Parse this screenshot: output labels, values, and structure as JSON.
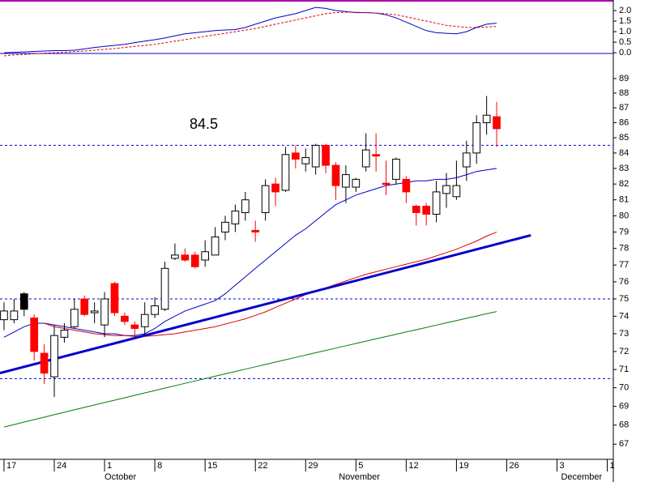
{
  "chart_data": {
    "type": "candlestick",
    "x": [
      0,
      1,
      2,
      3,
      4,
      5,
      6,
      7,
      8,
      9,
      10,
      11,
      12,
      13,
      14,
      15,
      16,
      17,
      18,
      19,
      20,
      21,
      22,
      23,
      24,
      25,
      26,
      27,
      28,
      29,
      30,
      31,
      32,
      33,
      34,
      35,
      36,
      37,
      38,
      39,
      40,
      41,
      42,
      43,
      44,
      45,
      46,
      47,
      48,
      49
    ],
    "open": [
      73.8,
      73.8,
      75.3,
      73.9,
      71.9,
      70.6,
      72.8,
      73.4,
      75.0,
      74.2,
      73.5,
      75.9,
      74.0,
      73.5,
      73.4,
      74.1,
      74.4,
      77.4,
      77.6,
      77.6,
      77.3,
      77.6,
      79.0,
      79.5,
      80.2,
      79.1,
      80.2,
      82.0,
      81.6,
      84.0,
      83.3,
      83.1,
      84.5,
      83.2,
      81.8,
      81.8,
      83.1,
      83.9,
      82.05,
      82.3,
      82.3,
      80.6,
      80.6,
      80.1,
      81.4,
      81.2,
      83.1,
      84.0,
      86.0,
      86.4
    ],
    "high": [
      74.8,
      75.0,
      75.4,
      74.1,
      72.4,
      73.5,
      73.6,
      75.0,
      75.2,
      74.8,
      75.4,
      76.0,
      74.2,
      73.7,
      74.8,
      75.1,
      77.2,
      78.3,
      78.0,
      77.8,
      78.5,
      79.3,
      80.0,
      80.7,
      81.5,
      79.7,
      82.3,
      82.4,
      84.4,
      84.5,
      84.3,
      84.6,
      84.6,
      83.4,
      83.2,
      82.4,
      85.3,
      85.3,
      83.5,
      83.7,
      82.5,
      80.7,
      80.8,
      82.2,
      82.7,
      83.5,
      84.8,
      86.5,
      87.8,
      87.4
    ],
    "low": [
      73.2,
      73.6,
      74.0,
      71.5,
      70.2,
      69.5,
      72.5,
      73.3,
      74.0,
      73.6,
      72.8,
      74.0,
      73.5,
      72.8,
      72.9,
      73.9,
      74.3,
      77.3,
      77.2,
      76.8,
      76.9,
      77.6,
      78.5,
      79.0,
      79.7,
      78.4,
      79.7,
      80.6,
      81.5,
      83.0,
      82.8,
      82.6,
      82.7,
      81.0,
      80.8,
      81.5,
      82.8,
      82.8,
      81.3,
      82.0,
      80.8,
      79.4,
      79.4,
      79.6,
      80.5,
      81.0,
      82.2,
      83.3,
      85.2,
      84.4
    ],
    "close": [
      74.3,
      74.3,
      74.4,
      72.0,
      70.8,
      72.9,
      73.2,
      74.4,
      74.1,
      74.3,
      75.0,
      74.2,
      73.7,
      73.3,
      74.1,
      74.6,
      76.8,
      77.6,
      77.3,
      76.9,
      77.8,
      78.7,
      79.6,
      80.3,
      81.0,
      79.0,
      81.9,
      81.5,
      83.9,
      83.6,
      83.7,
      84.5,
      83.2,
      81.9,
      82.6,
      82.3,
      84.2,
      83.8,
      82.0,
      83.6,
      81.5,
      80.2,
      80.1,
      81.5,
      81.9,
      81.9,
      84.0,
      86.0,
      86.5,
      85.6
    ],
    "up_color": "#ffffff",
    "down_color": "#ff0000",
    "highlight": {
      "index": 2,
      "color": "#000000"
    },
    "log_scale": true,
    "ylim": [
      66.3,
      90.75
    ],
    "yticks": [
      67,
      68,
      69,
      70,
      71,
      72,
      73,
      74,
      75,
      76,
      77,
      78,
      79,
      80,
      81,
      82,
      83,
      84,
      85,
      86,
      87,
      88,
      89
    ],
    "xlim": [
      -0.4,
      60.6
    ],
    "xticks": [
      {
        "value": 0,
        "label": "17"
      },
      {
        "value": 5,
        "label": "24"
      },
      {
        "value": 10,
        "label": "1"
      },
      {
        "value": 15,
        "label": "8"
      },
      {
        "value": 20,
        "label": "15"
      },
      {
        "value": 25,
        "label": "22"
      },
      {
        "value": 30,
        "label": "29"
      },
      {
        "value": 35,
        "label": "5"
      },
      {
        "value": 40,
        "label": "12"
      },
      {
        "value": 45,
        "label": "19"
      },
      {
        "value": 50,
        "label": "26"
      },
      {
        "value": 55,
        "label": "3"
      },
      {
        "value": 60,
        "label": "1"
      }
    ],
    "month_ticks": [
      {
        "value": 10,
        "label": "October"
      },
      {
        "value": 33.3,
        "label": "November"
      },
      {
        "value": 55.4,
        "label": "December"
      }
    ],
    "overlays": [
      {
        "color": "#0000cc",
        "values": [
          72.8,
          73.1,
          73.4,
          73.6,
          73.6,
          73.5,
          73.4,
          73.3,
          73.2,
          73.1,
          73.0,
          73.0,
          72.9,
          72.9,
          73.0,
          73.3,
          73.7,
          74.0,
          74.3,
          74.5,
          74.7,
          74.9,
          75.3,
          75.8,
          76.3,
          76.8,
          77.3,
          77.8,
          78.3,
          78.8,
          79.2,
          79.7,
          80.2,
          80.7,
          81.0,
          81.3,
          81.5,
          81.7,
          81.9,
          82.0,
          82.1,
          82.2,
          82.2,
          82.3,
          82.3,
          82.4,
          82.6,
          82.8,
          82.9,
          83.0
        ]
      },
      {
        "color": "#dd0000",
        "values": [
          null,
          null,
          null,
          null,
          73.6,
          73.4,
          73.3,
          73.2,
          73.1,
          73.0,
          72.95,
          72.9,
          72.9,
          72.85,
          72.85,
          72.9,
          72.95,
          73.0,
          73.1,
          73.2,
          73.3,
          73.4,
          73.55,
          73.7,
          73.85,
          74.05,
          74.25,
          74.5,
          74.75,
          75.0,
          75.25,
          75.45,
          75.65,
          75.85,
          76.05,
          76.25,
          76.45,
          76.6,
          76.75,
          76.9,
          77.05,
          77.2,
          77.35,
          77.55,
          77.75,
          77.95,
          78.2,
          78.45,
          78.75,
          79.0
        ]
      },
      {
        "color": "#008000",
        "values": [
          67.9,
          68.03,
          68.16,
          68.29,
          68.42,
          68.55,
          68.68,
          68.81,
          68.94,
          69.07,
          69.2,
          69.33,
          69.46,
          69.59,
          69.72,
          69.85,
          69.98,
          70.11,
          70.24,
          70.37,
          70.5,
          70.63,
          70.76,
          70.89,
          71.02,
          71.15,
          71.28,
          71.41,
          71.54,
          71.67,
          71.8,
          71.93,
          72.06,
          72.19,
          72.32,
          72.45,
          72.58,
          72.71,
          72.84,
          72.97,
          73.1,
          73.23,
          73.36,
          73.49,
          73.62,
          73.75,
          73.88,
          74.01,
          74.14,
          74.27
        ]
      }
    ],
    "trendline": {
      "x": [
        -0.4,
        52.4
      ],
      "values": [
        70.8,
        78.8
      ],
      "color": "#0000cc"
    },
    "hlines": [
      84.5,
      75,
      70.5
    ],
    "hline_color": "#0000cc",
    "annotation": "84.5",
    "indicator": {
      "ylim": [
        -0.38,
        2.5
      ],
      "yticks": [
        {
          "value": 0,
          "label": "0.0"
        },
        {
          "value": 0.5,
          "label": "0.5"
        },
        {
          "value": 1,
          "label": "1.0"
        },
        {
          "value": 1.5,
          "label": "1.5"
        },
        {
          "value": 2,
          "label": "2.0"
        }
      ],
      "series": [
        {
          "color": "#0000cc",
          "dashed": false,
          "values": [
            0.0,
            0.02,
            0.04,
            0.06,
            0.08,
            0.1,
            0.1,
            0.12,
            0.18,
            0.25,
            0.3,
            0.35,
            0.4,
            0.48,
            0.55,
            0.62,
            0.7,
            0.8,
            0.9,
            0.95,
            1.0,
            1.05,
            1.08,
            1.1,
            1.2,
            1.35,
            1.5,
            1.65,
            1.75,
            1.85,
            2.0,
            2.15,
            2.1,
            2.0,
            1.95,
            1.9,
            1.9,
            1.88,
            1.8,
            1.65,
            1.45,
            1.25,
            1.05,
            0.95,
            0.92,
            0.9,
            1.0,
            1.2,
            1.35,
            1.4
          ]
        },
        {
          "color": "#dd0000",
          "dashed": true,
          "values": [
            -0.15,
            -0.1,
            -0.08,
            -0.05,
            -0.02,
            0.0,
            0.02,
            0.05,
            0.08,
            0.12,
            0.16,
            0.2,
            0.25,
            0.3,
            0.35,
            0.4,
            0.47,
            0.55,
            0.62,
            0.7,
            0.78,
            0.85,
            0.92,
            1.0,
            1.07,
            1.15,
            1.25,
            1.35,
            1.45,
            1.55,
            1.65,
            1.75,
            1.85,
            1.9,
            1.92,
            1.92,
            1.9,
            1.88,
            1.85,
            1.8,
            1.7,
            1.6,
            1.5,
            1.4,
            1.3,
            1.25,
            1.2,
            1.2,
            1.22,
            1.25
          ]
        }
      ]
    }
  }
}
